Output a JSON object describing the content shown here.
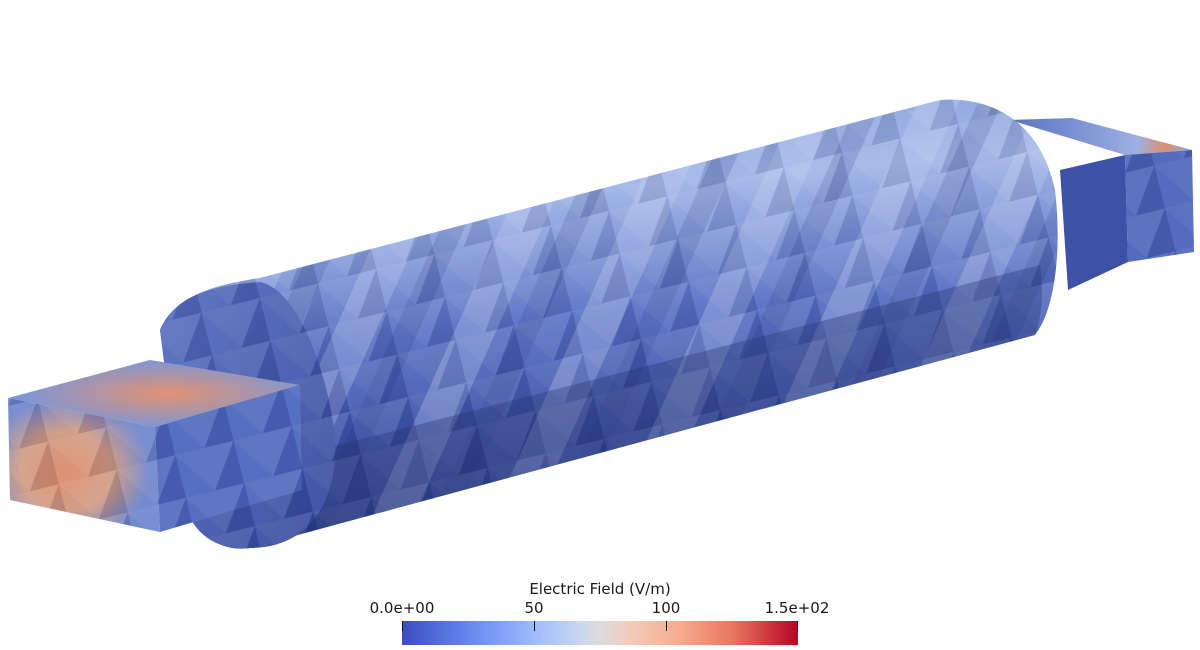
{
  "legend": {
    "title": "Electric Field (V/m)",
    "ticks": [
      "0.0e+00",
      "50",
      "100",
      "1.5e+02"
    ],
    "colormap": [
      "#3b4cc0",
      "#9abbff",
      "#dddcdc",
      "#f7ac8e",
      "#b40426"
    ]
  },
  "scene": {
    "object": "cylinder-with-square-end-rods",
    "colors": {
      "deep": "#3a4ea8",
      "mid": "#5f79c8",
      "light": "#a9bde8",
      "hot": "#d98a68",
      "shadow": "#2e3d86"
    }
  }
}
